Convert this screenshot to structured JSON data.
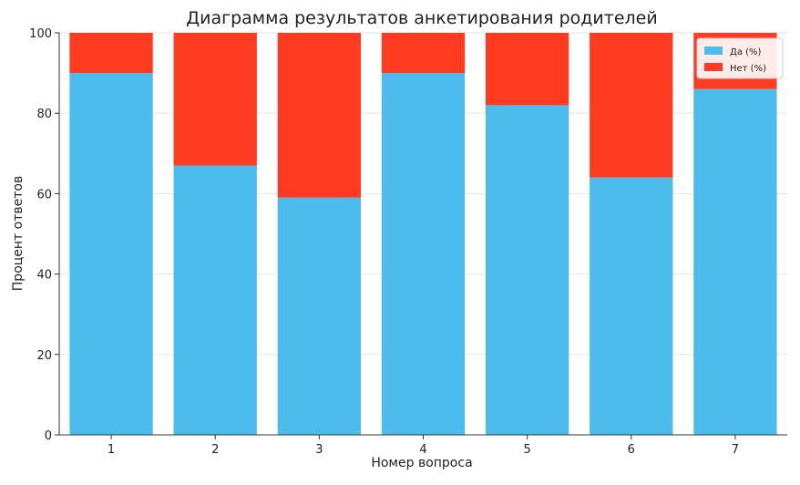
{
  "chart_data": {
    "type": "bar",
    "stacked": true,
    "title": "Диаграмма результатов анкетирования родителей",
    "xlabel": "Номер вопроса",
    "ylabel": "Процент ответов",
    "categories": [
      "1",
      "2",
      "3",
      "4",
      "5",
      "6",
      "7"
    ],
    "ylim": [
      0,
      100
    ],
    "yticks": [
      0,
      20,
      40,
      60,
      80,
      100
    ],
    "grid": true,
    "legend_position": "top-right",
    "series": [
      {
        "name": "Да (%)",
        "color": "#4BBCEC",
        "values": [
          90,
          67,
          59,
          90,
          82,
          64,
          86
        ]
      },
      {
        "name": "Нет (%)",
        "color": "#FF3B21",
        "values": [
          10,
          33,
          41,
          10,
          18,
          36,
          14
        ]
      }
    ]
  }
}
